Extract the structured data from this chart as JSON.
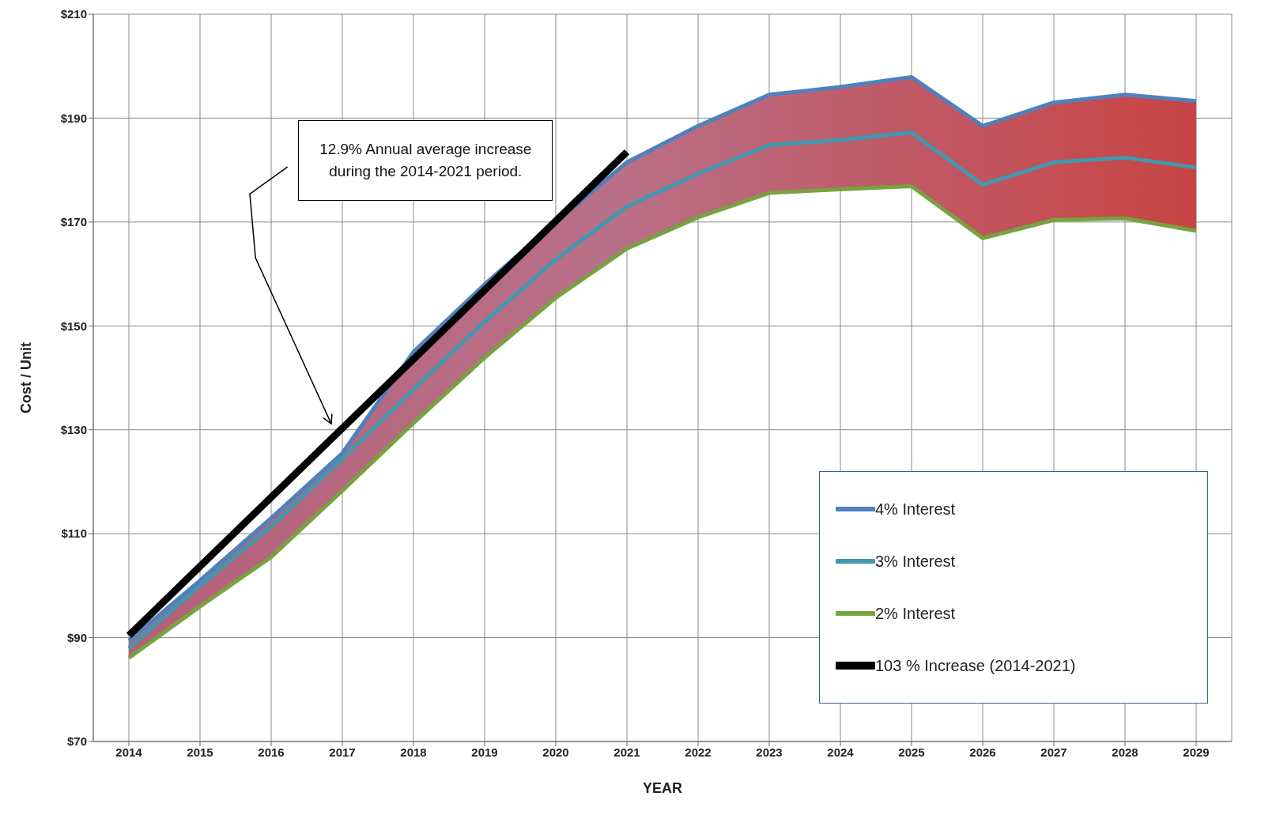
{
  "chart_data": {
    "type": "line",
    "xlabel": "YEAR",
    "ylabel": "Cost / Unit",
    "x": [
      2014,
      2015,
      2016,
      2017,
      2018,
      2019,
      2020,
      2021,
      2022,
      2023,
      2024,
      2025,
      2026,
      2027,
      2028,
      2029
    ],
    "series": [
      {
        "name": "4% Interest",
        "color": "#4f81bd",
        "values": [
          89.4,
          101,
          113,
          125.5,
          145,
          158,
          170,
          181.5,
          188.5,
          194.5,
          196,
          197.9,
          188.5,
          193,
          194.5,
          193.3
        ]
      },
      {
        "name": "3% Interest",
        "color": "#4198af",
        "values": [
          88,
          100,
          111.4,
          124.4,
          137.8,
          150.8,
          162.8,
          173,
          179.3,
          184.8,
          185.8,
          187.2,
          177.2,
          181.5,
          182.4,
          180.5
        ],
        "lower": [
          86.1,
          96,
          105.5,
          118.3,
          131.3,
          143.9,
          155.4,
          164.9,
          170.9,
          175.6,
          176.3,
          176.9,
          166.9,
          170.4,
          170.7,
          168.3
        ],
        "upper": [
          89.4,
          101,
          113,
          125.5,
          145,
          158,
          170,
          181.5,
          188.5,
          194.5,
          196,
          197.9,
          188.5,
          193,
          194.5,
          193.3
        ]
      },
      {
        "name": "2% Interest",
        "color": "#77a33e",
        "values": [
          86.1,
          96,
          105.5,
          118.3,
          131.3,
          143.9,
          155.4,
          164.9,
          170.9,
          175.6,
          176.3,
          176.9,
          166.9,
          170.4,
          170.7,
          168.3
        ]
      },
      {
        "name": "103 % Increase (2014-2021)",
        "color": "#000000",
        "x": [
          2014,
          2021
        ],
        "values": [
          90.4,
          183.5
        ]
      }
    ],
    "xlim": [
      2013.5,
      2029.5
    ],
    "xticks": [
      2014,
      2015,
      2016,
      2017,
      2018,
      2019,
      2020,
      2021,
      2022,
      2023,
      2024,
      2025,
      2026,
      2027,
      2028,
      2029
    ],
    "ylim": [
      70,
      210
    ],
    "yticks": [
      {
        "value": 70,
        "label": "$70"
      },
      {
        "value": 90,
        "label": "$90"
      },
      {
        "value": 110,
        "label": "$110"
      },
      {
        "value": 130,
        "label": "$130"
      },
      {
        "value": 150,
        "label": "$150"
      },
      {
        "value": 170,
        "label": "$170"
      },
      {
        "value": 190,
        "label": "$190"
      },
      {
        "value": 210,
        "label": "$210"
      }
    ],
    "grid": true,
    "legend": "bottom right",
    "marker": "none",
    "line_style": "solid",
    "annotations": [
      "12.9% Annual average increase during the 2014-2021 period."
    ]
  }
}
